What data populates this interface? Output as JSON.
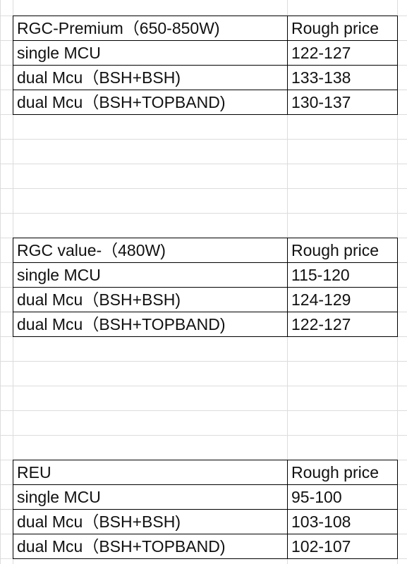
{
  "sheet": {
    "tables": [
      {
        "header": {
          "name": "RGC-Premium（650-850W)",
          "price": "Rough price"
        },
        "rows": [
          {
            "name": "single MCU",
            "price": "122-127"
          },
          {
            "name": "dual Mcu（BSH+BSH)",
            "price": "133-138"
          },
          {
            "name": "dual Mcu（BSH+TOPBAND)",
            "price": "130-137"
          }
        ]
      },
      {
        "header": {
          "name": "RGC value-（480W)",
          "price": "Rough price"
        },
        "rows": [
          {
            "name": "single MCU",
            "price": "115-120"
          },
          {
            "name": "dual Mcu（BSH+BSH)",
            "price": "124-129"
          },
          {
            "name": "dual Mcu（BSH+TOPBAND)",
            "price": "122-127"
          }
        ]
      },
      {
        "header": {
          "name": "REU",
          "price": "Rough price"
        },
        "rows": [
          {
            "name": "single MCU",
            "price": "95-100"
          },
          {
            "name": "dual Mcu（BSH+BSH)",
            "price": "103-108"
          },
          {
            "name": "dual Mcu（BSH+TOPBAND)",
            "price": "102-107"
          }
        ]
      }
    ]
  }
}
